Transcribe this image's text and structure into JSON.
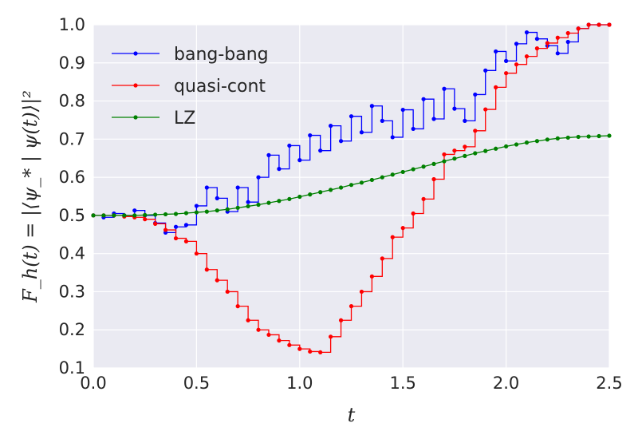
{
  "chart_data": {
    "type": "line",
    "xlabel": "t",
    "ylabel": "F_h(t) = |⟨ψ_* | ψ(t)⟩|²",
    "xlim": [
      0.0,
      2.5
    ],
    "ylim": [
      0.1,
      1.0
    ],
    "xticks": [
      "0.0",
      "0.5",
      "1.0",
      "1.5",
      "2.0",
      "2.5"
    ],
    "yticks": [
      "0.1",
      "0.2",
      "0.3",
      "0.4",
      "0.5",
      "0.6",
      "0.7",
      "0.8",
      "0.9",
      "1.0"
    ],
    "grid": true,
    "legend_position": "top-left",
    "background": "#EAEAF2",
    "step": 0.05,
    "series": [
      {
        "name": "bang-bang",
        "color": "#0000ff",
        "style": "step",
        "values": [
          0.5,
          0.495,
          0.505,
          0.5,
          0.513,
          0.5,
          0.48,
          0.455,
          0.47,
          0.475,
          0.525,
          0.573,
          0.545,
          0.51,
          0.573,
          0.535,
          0.6,
          0.658,
          0.622,
          0.683,
          0.645,
          0.71,
          0.67,
          0.735,
          0.695,
          0.76,
          0.718,
          0.787,
          0.748,
          0.705,
          0.777,
          0.727,
          0.805,
          0.753,
          0.832,
          0.78,
          0.748,
          0.817,
          0.88,
          0.93,
          0.905,
          0.95,
          0.98,
          0.963,
          0.945,
          0.925,
          0.955,
          0.99,
          1.0,
          1.0,
          1.0
        ]
      },
      {
        "name": "quasi-cont",
        "color": "#ff0000",
        "style": "step",
        "values": [
          0.5,
          0.5,
          0.5,
          0.497,
          0.495,
          0.49,
          0.478,
          0.462,
          0.44,
          0.432,
          0.4,
          0.358,
          0.33,
          0.3,
          0.262,
          0.225,
          0.2,
          0.187,
          0.172,
          0.16,
          0.15,
          0.143,
          0.141,
          0.182,
          0.225,
          0.262,
          0.3,
          0.34,
          0.387,
          0.443,
          0.467,
          0.505,
          0.543,
          0.595,
          0.66,
          0.67,
          0.68,
          0.722,
          0.778,
          0.836,
          0.873,
          0.896,
          0.917,
          0.938,
          0.952,
          0.966,
          0.978,
          0.99,
          1.0,
          1.0,
          1.0
        ]
      },
      {
        "name": "LZ",
        "color": "#008000",
        "style": "line",
        "values": [
          0.5,
          0.5,
          0.5,
          0.5,
          0.5,
          0.501,
          0.502,
          0.503,
          0.504,
          0.506,
          0.508,
          0.51,
          0.513,
          0.516,
          0.52,
          0.524,
          0.528,
          0.533,
          0.538,
          0.543,
          0.549,
          0.555,
          0.561,
          0.567,
          0.573,
          0.58,
          0.586,
          0.593,
          0.6,
          0.607,
          0.614,
          0.621,
          0.628,
          0.635,
          0.642,
          0.649,
          0.656,
          0.663,
          0.669,
          0.675,
          0.681,
          0.686,
          0.691,
          0.695,
          0.699,
          0.702,
          0.704,
          0.706,
          0.707,
          0.708,
          0.709
        ]
      }
    ]
  }
}
